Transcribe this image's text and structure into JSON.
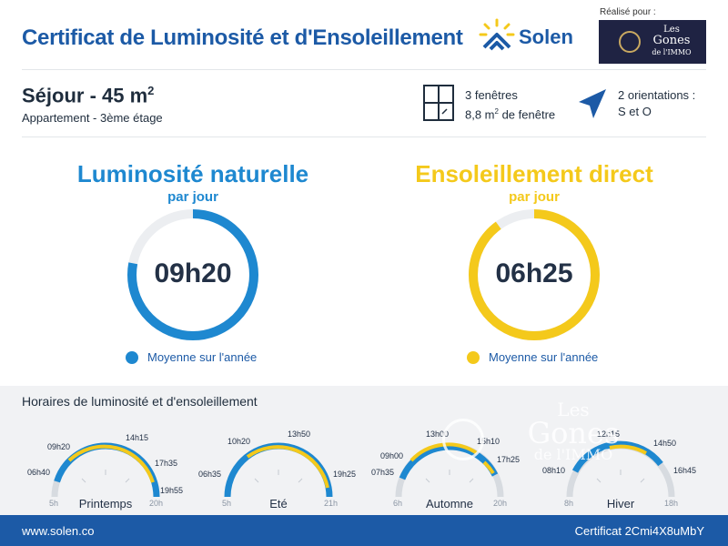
{
  "header": {
    "title": "Certificat de Luminosité et d'Ensoleillement",
    "brand": "Solen",
    "made_for_label": "Réalisé pour :",
    "client_logo": {
      "line1": "Les",
      "line2": "Gones",
      "line3": "de l'IMMO"
    }
  },
  "room": {
    "title": "Séjour - 45 m",
    "title_sup": "2",
    "subtitle": "Appartement - 3ème étage"
  },
  "windows": {
    "count": "3 fenêtres",
    "area": "8,8 m",
    "area_sup": "2",
    "area_suffix": " de fenêtre"
  },
  "orientation": {
    "line1": "2 orientations :",
    "line2": "S et O"
  },
  "luminosity": {
    "title": "Luminosité naturelle",
    "subtitle": "par jour",
    "value": "09h20",
    "legend": "Moyenne sur l'année",
    "color": "#1e88d0",
    "fraction": 0.78
  },
  "sunshine": {
    "title": "Ensoleillement direct",
    "subtitle": "par jour",
    "value": "06h25",
    "legend": "Moyenne sur l'année",
    "color": "#f4c91b",
    "fraction": 0.9
  },
  "schedule": {
    "title": "Horaires de luminosité et d'ensoleillement",
    "seasons": [
      {
        "name": "Printemps",
        "axis_start": "5h",
        "axis_end": "20h",
        "labels": [
          "06h40",
          "09h20",
          "14h15",
          "17h35",
          "19h55"
        ]
      },
      {
        "name": "Eté",
        "axis_start": "5h",
        "axis_end": "21h",
        "labels": [
          "06h35",
          "10h20",
          "13h50",
          "19h25"
        ]
      },
      {
        "name": "Automne",
        "axis_start": "6h",
        "axis_end": "20h",
        "labels": [
          "07h35",
          "09h00",
          "13h00",
          "15h10",
          "17h25"
        ]
      },
      {
        "name": "Hiver",
        "axis_start": "8h",
        "axis_end": "18h",
        "labels": [
          "08h10",
          "12h15",
          "14h50",
          "16h45"
        ]
      }
    ]
  },
  "watermark": {
    "line1": "Les",
    "line2": "Gones",
    "line3": "de l'IMMO"
  },
  "footer": {
    "website": "www.solen.co",
    "certificate": "Certificat 2Cmi4X8uMbY"
  }
}
